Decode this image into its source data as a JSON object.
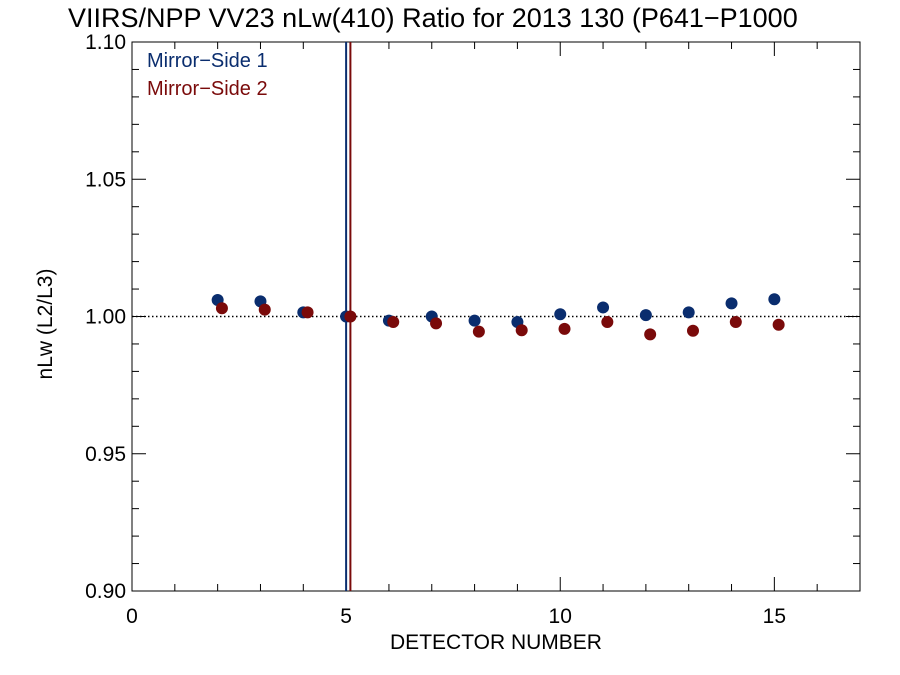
{
  "chart_data": {
    "type": "scatter",
    "title": "VIIRS/NPP VV23 nLw(410) Ratio for 2013 130 (P641−P1000",
    "xlabel": "DETECTOR NUMBER",
    "ylabel": "nLw (L2/L3)",
    "xlim": [
      0,
      17
    ],
    "ylim": [
      0.9,
      1.1
    ],
    "xticks": [
      0,
      5,
      10,
      15
    ],
    "xtick_labels": [
      "0",
      "5",
      "10",
      "15"
    ],
    "yticks": [
      0.9,
      0.95,
      1.0,
      1.05,
      1.1
    ],
    "ytick_labels": [
      "0.90",
      "0.95",
      "1.00",
      "1.05",
      "1.10"
    ],
    "x_minor_step": 1,
    "y_minor_step": 0.01,
    "grid": false,
    "legend_position": "top-left",
    "reference_line": {
      "y": 1.0,
      "style": "dotted"
    },
    "vertical_lines": [
      {
        "x": 5.0,
        "color": "#0a2d6e"
      },
      {
        "x": 5.1,
        "color": "#7a0a0a"
      }
    ],
    "series": [
      {
        "name": "Mirror−Side 1",
        "color": "#0a2d6e",
        "x": [
          2,
          3,
          4,
          5,
          6,
          7,
          8,
          9,
          10,
          11,
          12,
          13,
          14,
          15
        ],
        "y": [
          1.006,
          1.0055,
          1.0015,
          1.0,
          0.9985,
          1.0,
          0.9985,
          0.998,
          1.0008,
          1.0033,
          1.0005,
          1.0015,
          1.0048,
          1.0063
        ]
      },
      {
        "name": "Mirror−Side 2",
        "color": "#7a0a0a",
        "x": [
          2.1,
          3.1,
          4.1,
          5.1,
          6.1,
          7.1,
          8.1,
          9.1,
          10.1,
          11.1,
          12.1,
          13.1,
          14.1,
          15.1
        ],
        "y": [
          1.003,
          1.0025,
          1.0015,
          1.0,
          0.998,
          0.9975,
          0.9945,
          0.995,
          0.9955,
          0.998,
          0.9935,
          0.9948,
          0.998,
          0.997
        ]
      }
    ]
  }
}
